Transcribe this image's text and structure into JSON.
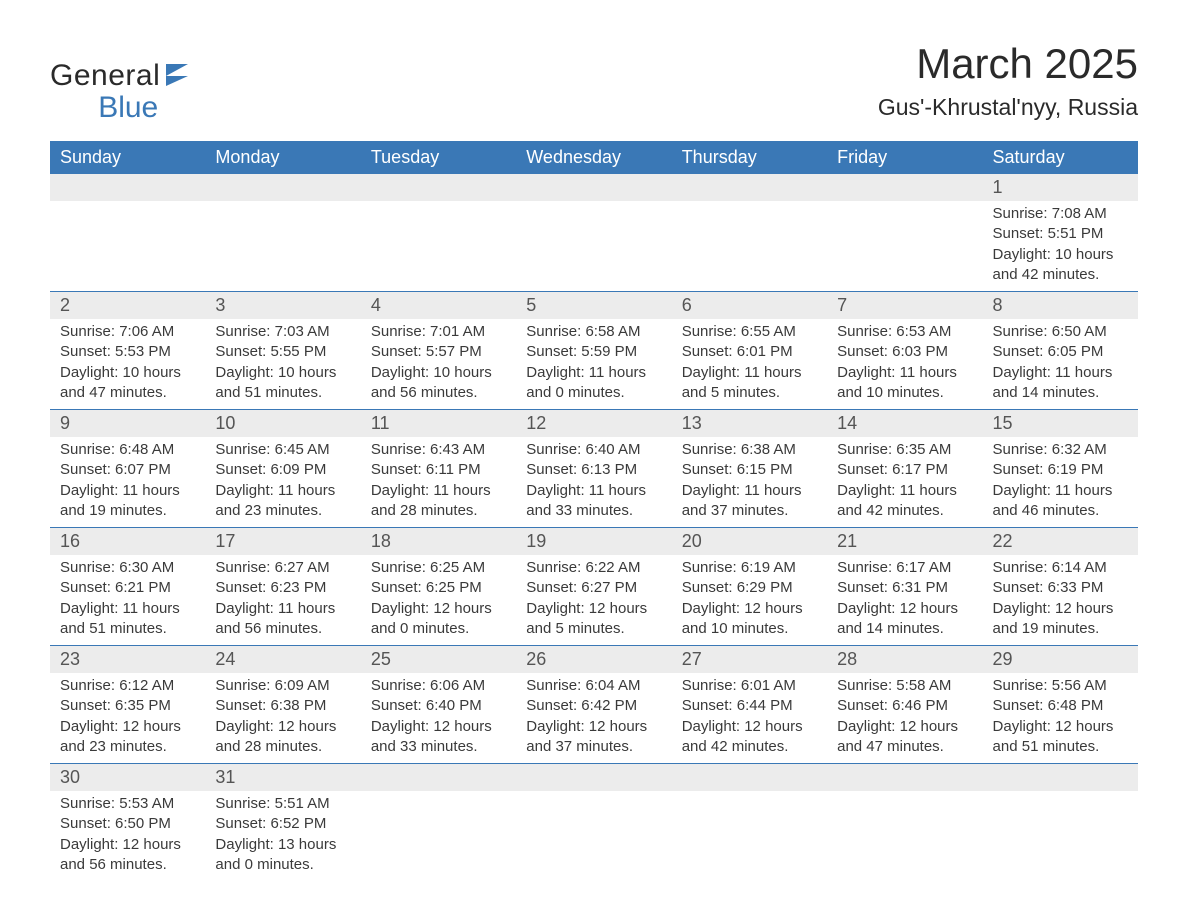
{
  "logo": {
    "word1": "General",
    "word2": "Blue",
    "accent": "#3a78b6",
    "text_color": "#2a2a2a"
  },
  "title": "March 2025",
  "location": "Gus'-Khrustal'nyy, Russia",
  "colors": {
    "header_bg": "#3a78b6",
    "header_text": "#ffffff",
    "daynum_bg": "#ececec",
    "daynum_text": "#555555",
    "body_text": "#3a3a3a",
    "rule": "#3a78b6",
    "page_bg": "#ffffff"
  },
  "typography": {
    "title_fontsize": 42,
    "location_fontsize": 23,
    "header_fontsize": 18,
    "daynum_fontsize": 18,
    "cell_fontsize": 15
  },
  "table": {
    "columns": [
      "Sunday",
      "Monday",
      "Tuesday",
      "Wednesday",
      "Thursday",
      "Friday",
      "Saturday"
    ],
    "weeks": [
      [
        null,
        null,
        null,
        null,
        null,
        null,
        {
          "n": "1",
          "sunrise": "7:08 AM",
          "sunset": "5:51 PM",
          "dl_h": "10",
          "dl_m": "42"
        }
      ],
      [
        {
          "n": "2",
          "sunrise": "7:06 AM",
          "sunset": "5:53 PM",
          "dl_h": "10",
          "dl_m": "47"
        },
        {
          "n": "3",
          "sunrise": "7:03 AM",
          "sunset": "5:55 PM",
          "dl_h": "10",
          "dl_m": "51"
        },
        {
          "n": "4",
          "sunrise": "7:01 AM",
          "sunset": "5:57 PM",
          "dl_h": "10",
          "dl_m": "56"
        },
        {
          "n": "5",
          "sunrise": "6:58 AM",
          "sunset": "5:59 PM",
          "dl_h": "11",
          "dl_m": "0"
        },
        {
          "n": "6",
          "sunrise": "6:55 AM",
          "sunset": "6:01 PM",
          "dl_h": "11",
          "dl_m": "5"
        },
        {
          "n": "7",
          "sunrise": "6:53 AM",
          "sunset": "6:03 PM",
          "dl_h": "11",
          "dl_m": "10"
        },
        {
          "n": "8",
          "sunrise": "6:50 AM",
          "sunset": "6:05 PM",
          "dl_h": "11",
          "dl_m": "14"
        }
      ],
      [
        {
          "n": "9",
          "sunrise": "6:48 AM",
          "sunset": "6:07 PM",
          "dl_h": "11",
          "dl_m": "19"
        },
        {
          "n": "10",
          "sunrise": "6:45 AM",
          "sunset": "6:09 PM",
          "dl_h": "11",
          "dl_m": "23"
        },
        {
          "n": "11",
          "sunrise": "6:43 AM",
          "sunset": "6:11 PM",
          "dl_h": "11",
          "dl_m": "28"
        },
        {
          "n": "12",
          "sunrise": "6:40 AM",
          "sunset": "6:13 PM",
          "dl_h": "11",
          "dl_m": "33"
        },
        {
          "n": "13",
          "sunrise": "6:38 AM",
          "sunset": "6:15 PM",
          "dl_h": "11",
          "dl_m": "37"
        },
        {
          "n": "14",
          "sunrise": "6:35 AM",
          "sunset": "6:17 PM",
          "dl_h": "11",
          "dl_m": "42"
        },
        {
          "n": "15",
          "sunrise": "6:32 AM",
          "sunset": "6:19 PM",
          "dl_h": "11",
          "dl_m": "46"
        }
      ],
      [
        {
          "n": "16",
          "sunrise": "6:30 AM",
          "sunset": "6:21 PM",
          "dl_h": "11",
          "dl_m": "51"
        },
        {
          "n": "17",
          "sunrise": "6:27 AM",
          "sunset": "6:23 PM",
          "dl_h": "11",
          "dl_m": "56"
        },
        {
          "n": "18",
          "sunrise": "6:25 AM",
          "sunset": "6:25 PM",
          "dl_h": "12",
          "dl_m": "0"
        },
        {
          "n": "19",
          "sunrise": "6:22 AM",
          "sunset": "6:27 PM",
          "dl_h": "12",
          "dl_m": "5"
        },
        {
          "n": "20",
          "sunrise": "6:19 AM",
          "sunset": "6:29 PM",
          "dl_h": "12",
          "dl_m": "10"
        },
        {
          "n": "21",
          "sunrise": "6:17 AM",
          "sunset": "6:31 PM",
          "dl_h": "12",
          "dl_m": "14"
        },
        {
          "n": "22",
          "sunrise": "6:14 AM",
          "sunset": "6:33 PM",
          "dl_h": "12",
          "dl_m": "19"
        }
      ],
      [
        {
          "n": "23",
          "sunrise": "6:12 AM",
          "sunset": "6:35 PM",
          "dl_h": "12",
          "dl_m": "23"
        },
        {
          "n": "24",
          "sunrise": "6:09 AM",
          "sunset": "6:38 PM",
          "dl_h": "12",
          "dl_m": "28"
        },
        {
          "n": "25",
          "sunrise": "6:06 AM",
          "sunset": "6:40 PM",
          "dl_h": "12",
          "dl_m": "33"
        },
        {
          "n": "26",
          "sunrise": "6:04 AM",
          "sunset": "6:42 PM",
          "dl_h": "12",
          "dl_m": "37"
        },
        {
          "n": "27",
          "sunrise": "6:01 AM",
          "sunset": "6:44 PM",
          "dl_h": "12",
          "dl_m": "42"
        },
        {
          "n": "28",
          "sunrise": "5:58 AM",
          "sunset": "6:46 PM",
          "dl_h": "12",
          "dl_m": "47"
        },
        {
          "n": "29",
          "sunrise": "5:56 AM",
          "sunset": "6:48 PM",
          "dl_h": "12",
          "dl_m": "51"
        }
      ],
      [
        {
          "n": "30",
          "sunrise": "5:53 AM",
          "sunset": "6:50 PM",
          "dl_h": "12",
          "dl_m": "56"
        },
        {
          "n": "31",
          "sunrise": "5:51 AM",
          "sunset": "6:52 PM",
          "dl_h": "13",
          "dl_m": "0"
        },
        null,
        null,
        null,
        null,
        null
      ]
    ]
  },
  "labels": {
    "sunrise": "Sunrise:",
    "sunset": "Sunset:",
    "daylight_prefix": "Daylight:",
    "hours_word": "hours",
    "and_word": "and",
    "minutes_word": "minutes."
  }
}
